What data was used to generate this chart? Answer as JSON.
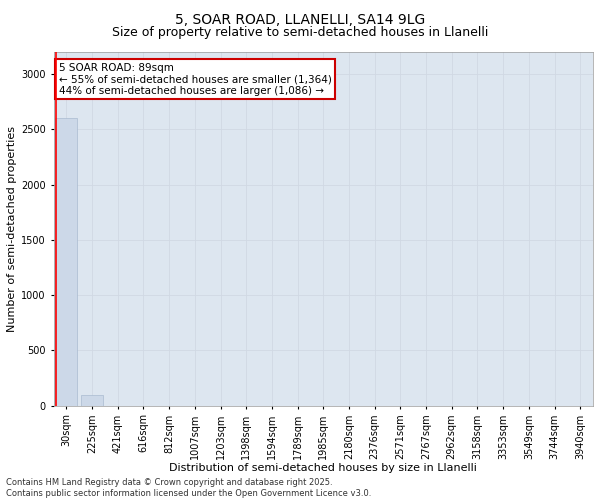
{
  "title1": "5, SOAR ROAD, LLANELLI, SA14 9LG",
  "title2": "Size of property relative to semi-detached houses in Llanelli",
  "xlabel": "Distribution of semi-detached houses by size in Llanelli",
  "ylabel": "Number of semi-detached properties",
  "footnote": "Contains HM Land Registry data © Crown copyright and database right 2025.\nContains public sector information licensed under the Open Government Licence v3.0.",
  "bin_labels": [
    "30sqm",
    "225sqm",
    "421sqm",
    "616sqm",
    "812sqm",
    "1007sqm",
    "1203sqm",
    "1398sqm",
    "1594sqm",
    "1789sqm",
    "1985sqm",
    "2180sqm",
    "2376sqm",
    "2571sqm",
    "2767sqm",
    "2962sqm",
    "3158sqm",
    "3353sqm",
    "3549sqm",
    "3744sqm",
    "3940sqm"
  ],
  "bar_values": [
    2600,
    100,
    0,
    0,
    0,
    0,
    0,
    0,
    0,
    0,
    0,
    0,
    0,
    0,
    0,
    0,
    0,
    0,
    0,
    0,
    0
  ],
  "bar_color": "#ccd8e8",
  "bar_edge_color": "#aabbd0",
  "annotation_text": "5 SOAR ROAD: 89sqm\n← 55% of semi-detached houses are smaller (1,364)\n44% of semi-detached houses are larger (1,086) →",
  "annotation_box_facecolor": "#ffffff",
  "annotation_box_edgecolor": "#cc0000",
  "ylim": [
    0,
    3200
  ],
  "yticks": [
    0,
    500,
    1000,
    1500,
    2000,
    2500,
    3000
  ],
  "grid_color": "#d0d8e4",
  "background_color": "#dde6f0",
  "title1_fontsize": 10,
  "title2_fontsize": 9,
  "xlabel_fontsize": 8,
  "ylabel_fontsize": 8,
  "tick_fontsize": 7,
  "annot_fontsize": 7.5,
  "footnote_fontsize": 6
}
